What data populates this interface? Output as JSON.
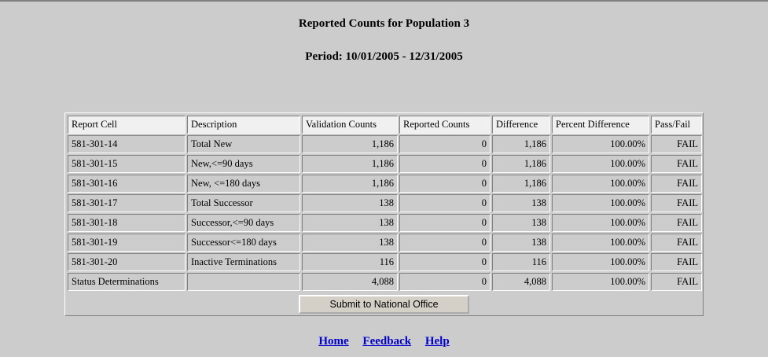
{
  "title": "Reported Counts for Population 3",
  "period": "Period:  10/01/2005 - 12/31/2005",
  "table": {
    "headers": [
      "Report Cell",
      "Description",
      "Validation Counts",
      "Reported Counts",
      "Difference",
      "Percent Difference",
      "Pass/Fail"
    ],
    "rows": [
      [
        "581-301-14",
        "Total New",
        "1,186",
        "0",
        "1,186",
        "100.00%",
        "FAIL"
      ],
      [
        "581-301-15",
        "New,<=90 days",
        "1,186",
        "0",
        "1,186",
        "100.00%",
        "FAIL"
      ],
      [
        "581-301-16",
        "New, <=180 days",
        "1,186",
        "0",
        "1,186",
        "100.00%",
        "FAIL"
      ],
      [
        "581-301-17",
        "Total Successor",
        "138",
        "0",
        "138",
        "100.00%",
        "FAIL"
      ],
      [
        "581-301-18",
        "Successor,<=90 days",
        "138",
        "0",
        "138",
        "100.00%",
        "FAIL"
      ],
      [
        "581-301-19",
        "Successor<=180 days",
        "138",
        "0",
        "138",
        "100.00%",
        "FAIL"
      ],
      [
        "581-301-20",
        "Inactive Terminations",
        "116",
        "0",
        "116",
        "100.00%",
        "FAIL"
      ],
      [
        "Status Determinations",
        "",
        "4,088",
        "0",
        "4,088",
        "100.00%",
        "FAIL"
      ]
    ]
  },
  "submit_label": "Submit to National Office",
  "links": [
    "Home",
    "Feedback",
    "Help"
  ]
}
